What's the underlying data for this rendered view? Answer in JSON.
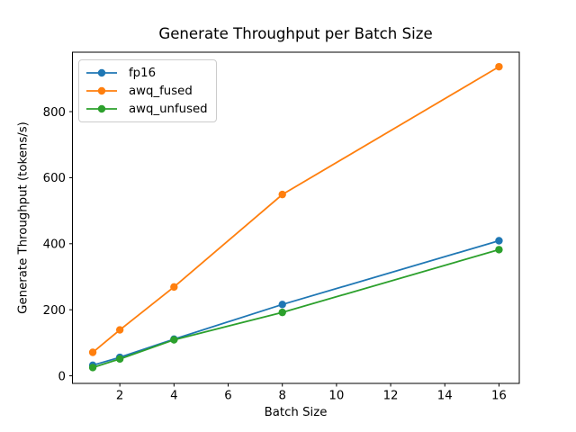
{
  "chart_data": {
    "type": "line",
    "title": "Generate Throughput per Batch Size",
    "xlabel": "Batch Size",
    "ylabel": "Generate Throughput (tokens/s)",
    "x": [
      1,
      2,
      4,
      8,
      16
    ],
    "series": [
      {
        "name": "fp16",
        "color": "#1f77b4",
        "values": [
          32,
          56,
          111,
          216,
          409
        ]
      },
      {
        "name": "awq_fused",
        "color": "#ff7f0e",
        "values": [
          71,
          139,
          269,
          549,
          936
        ]
      },
      {
        "name": "awq_unfused",
        "color": "#2ca02c",
        "values": [
          25,
          51,
          109,
          192,
          382
        ]
      }
    ],
    "xticks": [
      2,
      4,
      6,
      8,
      10,
      12,
      14,
      16
    ],
    "yticks": [
      0,
      200,
      400,
      600,
      800
    ],
    "xlim": [
      0.25,
      16.75
    ],
    "ylim": [
      -23,
      980
    ],
    "grid": false,
    "legend_position": "upper left",
    "marker": "o",
    "background": "#ffffff",
    "axis_color": "#000000"
  }
}
